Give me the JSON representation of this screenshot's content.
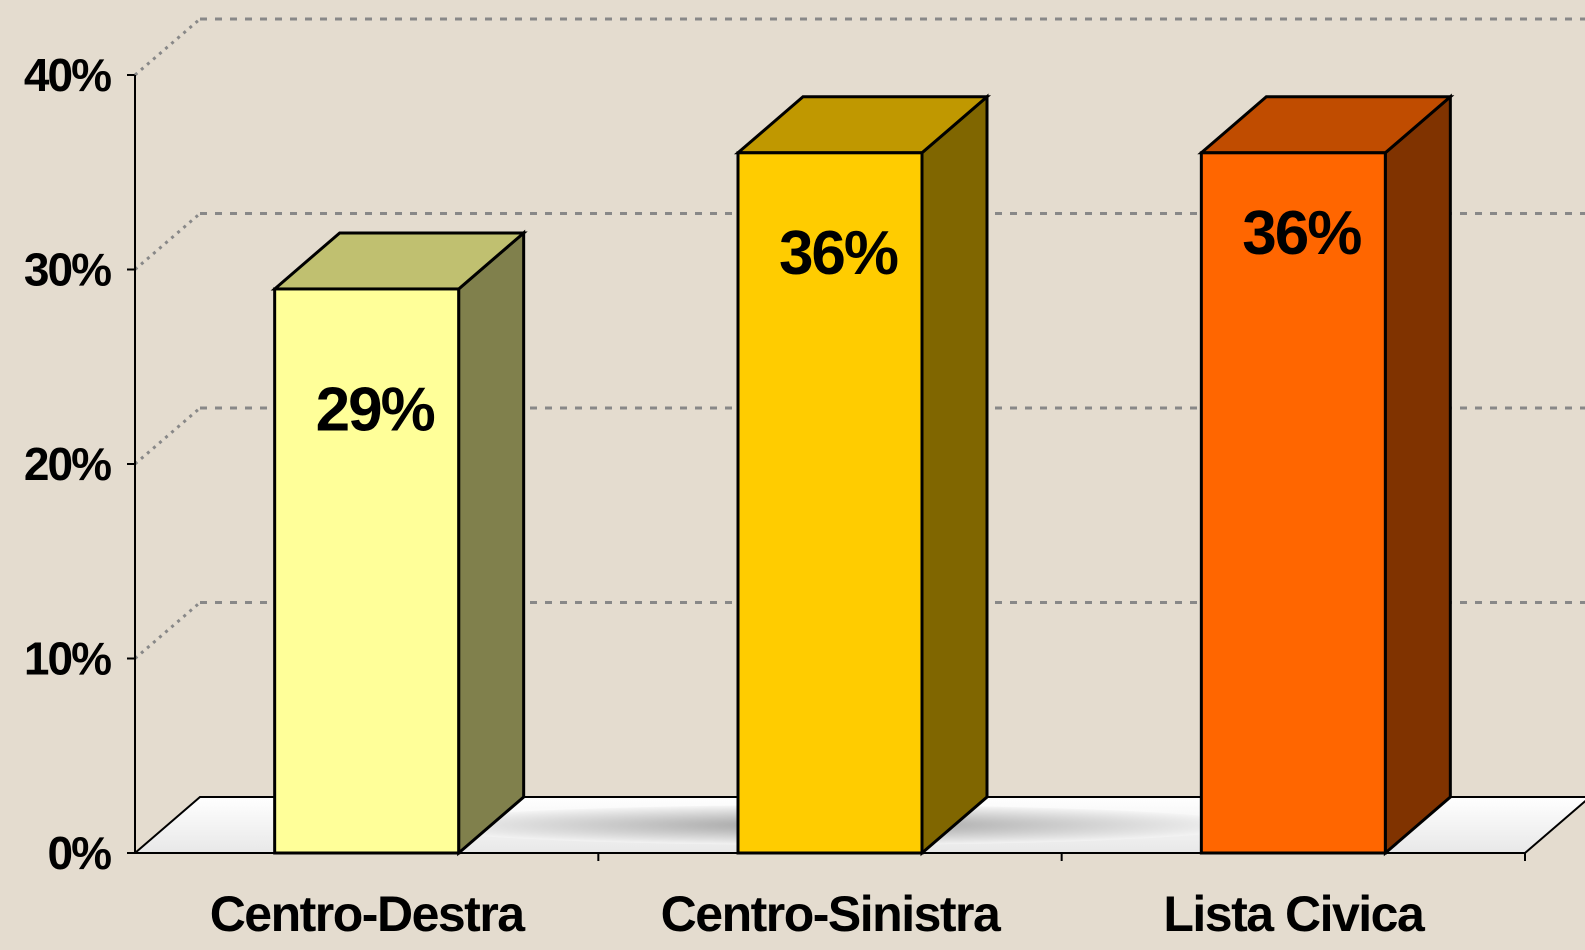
{
  "chart_data": {
    "type": "bar3d",
    "categories": [
      "Centro-Destra",
      "Centro-Sinistra",
      "Lista Civica"
    ],
    "values": [
      29,
      36,
      36
    ],
    "value_labels": [
      "29%",
      "36%",
      "36%"
    ],
    "colors": [
      "#ffff99",
      "#ffcc00",
      "#ff6600"
    ],
    "top_colors": [
      "#c0c070",
      "#c09800",
      "#c04c00"
    ],
    "side_colors": [
      "#80804c",
      "#806600",
      "#803300"
    ],
    "ylim": [
      0,
      40
    ],
    "yticks": [
      {
        "value": 0,
        "label": "0%"
      },
      {
        "value": 10,
        "label": "10%"
      },
      {
        "value": 20,
        "label": "20%"
      },
      {
        "value": 30,
        "label": "30%"
      },
      {
        "value": 40,
        "label": "40%"
      }
    ],
    "grid": true
  }
}
